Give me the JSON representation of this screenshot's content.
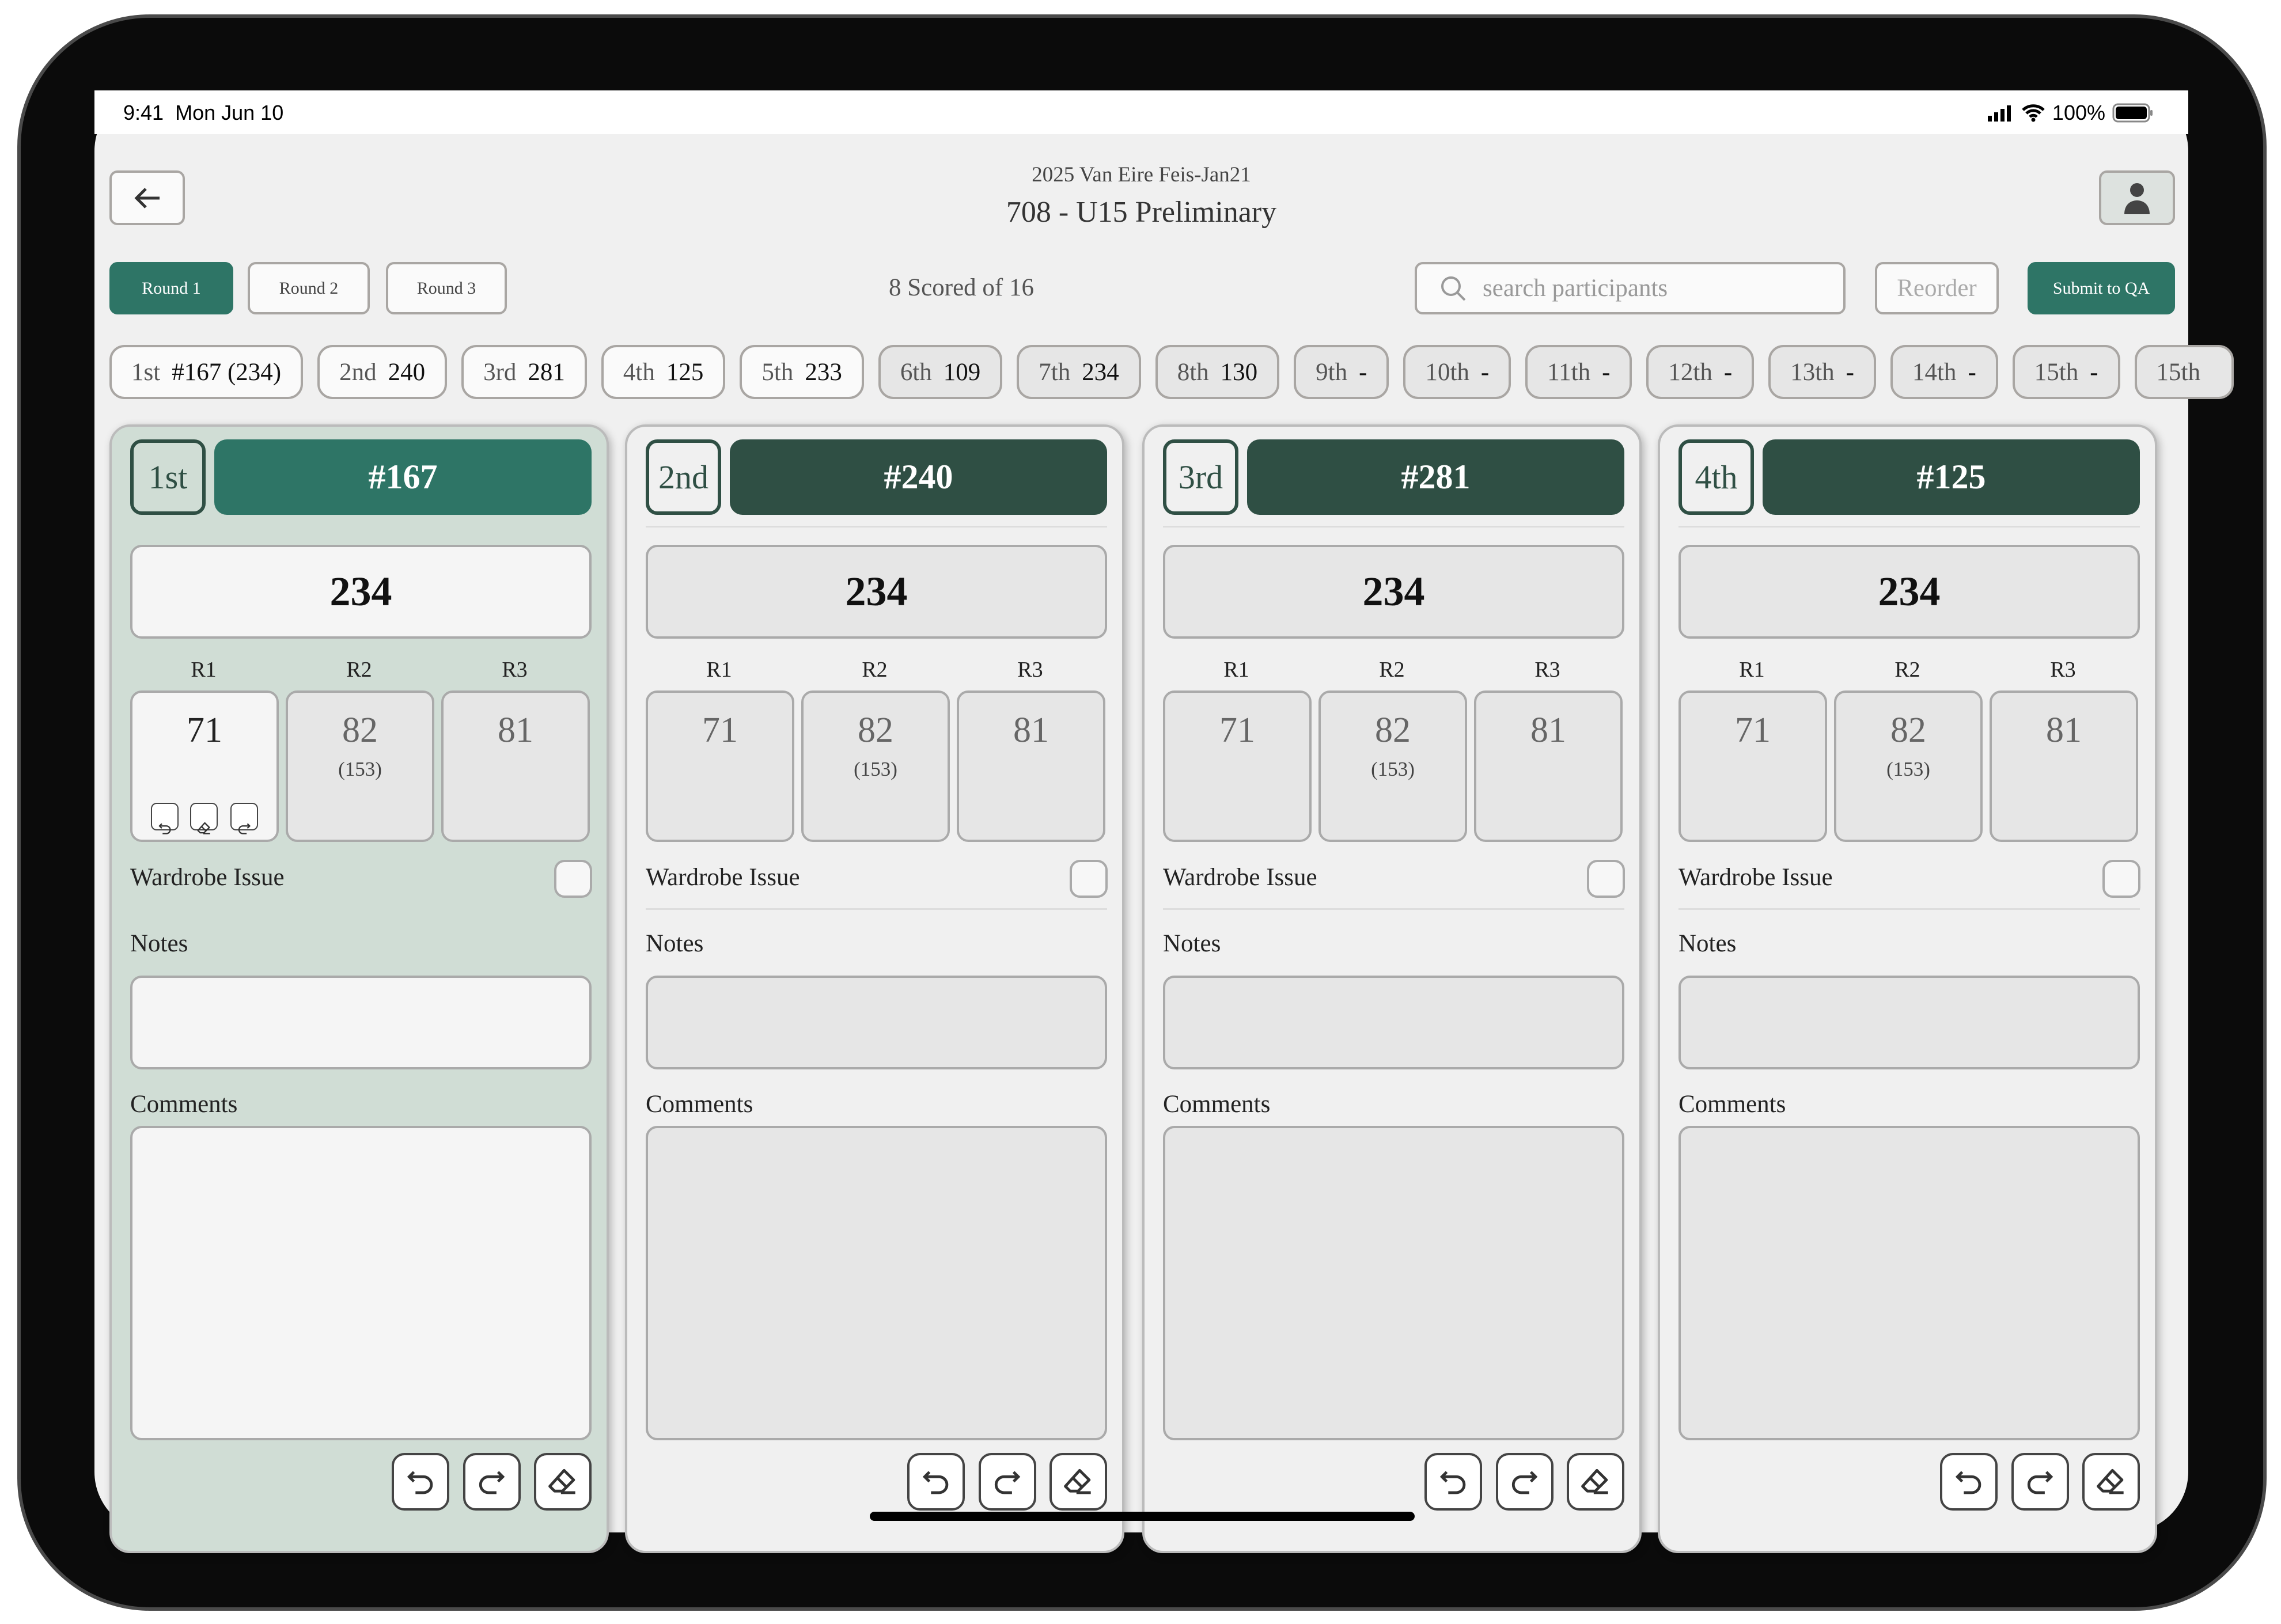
{
  "status": {
    "time": "9:41",
    "date": "Mon Jun 10",
    "battery": "100%"
  },
  "header": {
    "event": "2025 Van Eire Feis-Jan21",
    "title": "708 - U15 Preliminary"
  },
  "rounds": [
    {
      "label": "Round 1",
      "active": true
    },
    {
      "label": "Round 2",
      "active": false
    },
    {
      "label": "Round 3",
      "active": false
    }
  ],
  "scored_text": "8 Scored of 16",
  "search": {
    "placeholder": "search participants"
  },
  "reorder_label": "Reorder",
  "submit_label": "Submit to QA",
  "chips": [
    {
      "place": "1st",
      "value": "#167 (234)"
    },
    {
      "place": "2nd",
      "value": "240"
    },
    {
      "place": "3rd",
      "value": "281"
    },
    {
      "place": "4th",
      "value": "125"
    },
    {
      "place": "5th",
      "value": "233"
    },
    {
      "place": "6th",
      "value": "109"
    },
    {
      "place": "7th",
      "value": "234"
    },
    {
      "place": "8th",
      "value": "130"
    },
    {
      "place": "9th",
      "value": "-"
    },
    {
      "place": "10th",
      "value": "-"
    },
    {
      "place": "11th",
      "value": "-"
    },
    {
      "place": "12th",
      "value": "-"
    },
    {
      "place": "13th",
      "value": "-"
    },
    {
      "place": "14th",
      "value": "-"
    },
    {
      "place": "15th",
      "value": "-"
    },
    {
      "place": "15th",
      "value": ""
    }
  ],
  "round_labels": [
    "R1",
    "R2",
    "R3"
  ],
  "wardrobe_label": "Wardrobe Issue",
  "notes_label": "Notes",
  "comments_label": "Comments",
  "cards": [
    {
      "place": "1st",
      "number": "#167",
      "total": "234",
      "scores": [
        "71",
        "82",
        "81"
      ],
      "r2_sub": "(153)",
      "selected": true
    },
    {
      "place": "2nd",
      "number": "#240",
      "total": "234",
      "scores": [
        "71",
        "82",
        "81"
      ],
      "r2_sub": "(153)",
      "selected": false
    },
    {
      "place": "3rd",
      "number": "#281",
      "total": "234",
      "scores": [
        "71",
        "82",
        "81"
      ],
      "r2_sub": "(153)",
      "selected": false
    },
    {
      "place": "4th",
      "number": "#125",
      "total": "234",
      "scores": [
        "71",
        "82",
        "81"
      ],
      "r2_sub": "(153)",
      "selected": false
    }
  ],
  "colors": {
    "accent": "#2e7566",
    "dark": "#2f4f44",
    "selected_card": "#d0ddd5"
  }
}
